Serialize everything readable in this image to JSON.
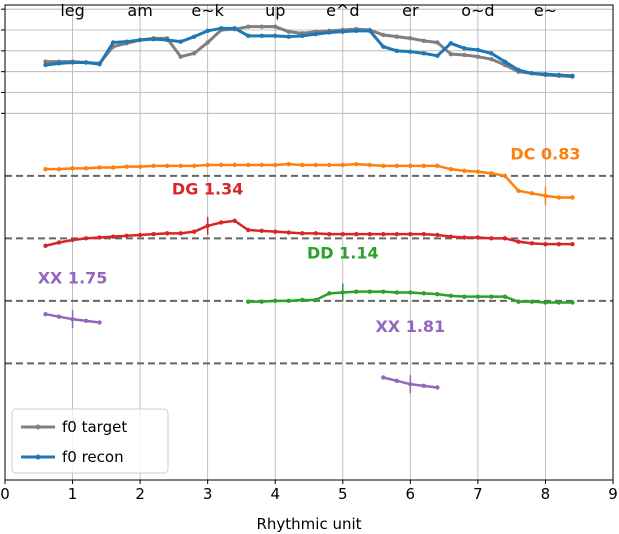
{
  "chart_data": {
    "type": "line",
    "title": "",
    "xlabel": "Rhythmic unit",
    "ylabel": "",
    "xlim": [
      0,
      9
    ],
    "ylim": [
      -4.4,
      1.3
    ],
    "x_ticks": [
      "0",
      "1",
      "2",
      "3",
      "4",
      "5",
      "6",
      "7",
      "8",
      "9"
    ],
    "top_labels": [
      {
        "x": 1.0,
        "text": "leg"
      },
      {
        "x": 2.0,
        "text": "am"
      },
      {
        "x": 3.0,
        "text": "e~k"
      },
      {
        "x": 4.0,
        "text": "up"
      },
      {
        "x": 5.0,
        "text": "e^d"
      },
      {
        "x": 6.0,
        "text": "er"
      },
      {
        "x": 7.0,
        "text": "o~d"
      },
      {
        "x": 8.0,
        "text": "e~"
      }
    ],
    "y_ticks": [
      1.25,
      1.0,
      0.75,
      0.5,
      0.25,
      0.0
    ],
    "baselines": [
      -0.75,
      -1.5,
      -2.25,
      -3.0
    ],
    "series": [
      {
        "name": "f0 target",
        "color": "#7f7f7f",
        "x": [
          0.6,
          0.8,
          1.0,
          1.2,
          1.4,
          1.6,
          1.8,
          2.0,
          2.2,
          2.4,
          2.6,
          2.8,
          3.0,
          3.2,
          3.4,
          3.6,
          3.8,
          4.0,
          4.2,
          4.4,
          4.6,
          4.8,
          5.0,
          5.2,
          5.4,
          5.6,
          5.8,
          6.0,
          6.2,
          6.4,
          6.6,
          6.8,
          7.0,
          7.2,
          7.4,
          7.6,
          7.8,
          8.0,
          8.2,
          8.4
        ],
        "y": [
          0.62,
          0.62,
          0.62,
          0.61,
          0.6,
          0.8,
          0.84,
          0.88,
          0.9,
          0.9,
          0.68,
          0.72,
          0.85,
          1.0,
          1.01,
          1.04,
          1.04,
          1.04,
          0.98,
          0.96,
          0.98,
          0.99,
          1.0,
          1.01,
          1.0,
          0.94,
          0.92,
          0.9,
          0.87,
          0.85,
          0.71,
          0.7,
          0.68,
          0.65,
          0.58,
          0.5,
          0.48,
          0.46,
          0.45,
          0.44
        ]
      },
      {
        "name": "f0 recon",
        "color": "#1f77b4",
        "x": [
          0.6,
          0.8,
          1.0,
          1.2,
          1.4,
          1.6,
          1.8,
          2.0,
          2.2,
          2.4,
          2.6,
          2.8,
          3.0,
          3.2,
          3.4,
          3.6,
          3.8,
          4.0,
          4.2,
          4.4,
          4.6,
          4.8,
          5.0,
          5.2,
          5.4,
          5.6,
          5.8,
          6.0,
          6.2,
          6.4,
          6.6,
          6.8,
          7.0,
          7.2,
          7.4,
          7.6,
          7.8,
          8.0,
          8.2,
          8.4
        ],
        "y": [
          0.58,
          0.6,
          0.61,
          0.61,
          0.59,
          0.85,
          0.86,
          0.88,
          0.89,
          0.88,
          0.86,
          0.92,
          0.99,
          1.02,
          1.02,
          0.93,
          0.93,
          0.93,
          0.92,
          0.93,
          0.95,
          0.97,
          0.98,
          0.99,
          0.99,
          0.8,
          0.75,
          0.74,
          0.72,
          0.69,
          0.84,
          0.78,
          0.76,
          0.72,
          0.62,
          0.52,
          0.48,
          0.47,
          0.46,
          0.45
        ]
      },
      {
        "name": "DC",
        "color": "#ff7f0e",
        "offset": -0.75,
        "label": "DC 0.83",
        "label_x": 8.0,
        "label_y": -0.48,
        "marker_x": 8.0,
        "x": [
          0.6,
          0.8,
          1.0,
          1.2,
          1.4,
          1.6,
          1.8,
          2.0,
          2.2,
          2.4,
          2.6,
          2.8,
          3.0,
          3.2,
          3.4,
          3.6,
          3.8,
          4.0,
          4.2,
          4.4,
          4.6,
          4.8,
          5.0,
          5.2,
          5.4,
          5.6,
          5.8,
          6.0,
          6.2,
          6.4,
          6.6,
          6.8,
          7.0,
          7.2,
          7.4,
          7.6,
          7.8,
          8.0,
          8.2,
          8.4
        ],
        "y": [
          -0.67,
          -0.67,
          -0.66,
          -0.66,
          -0.65,
          -0.65,
          -0.64,
          -0.64,
          -0.63,
          -0.63,
          -0.63,
          -0.63,
          -0.62,
          -0.62,
          -0.62,
          -0.62,
          -0.62,
          -0.62,
          -0.61,
          -0.62,
          -0.62,
          -0.62,
          -0.62,
          -0.61,
          -0.62,
          -0.63,
          -0.63,
          -0.63,
          -0.63,
          -0.63,
          -0.67,
          -0.69,
          -0.7,
          -0.72,
          -0.75,
          -0.93,
          -0.96,
          -0.99,
          -1.01,
          -1.01
        ]
      },
      {
        "name": "DG",
        "color": "#d62728",
        "offset": -1.5,
        "label": "DG 1.34",
        "label_x": 3.0,
        "label_y": -0.9,
        "marker_x": 3.0,
        "x": [
          0.6,
          0.8,
          1.0,
          1.2,
          1.4,
          1.6,
          1.8,
          2.0,
          2.2,
          2.4,
          2.6,
          2.8,
          3.0,
          3.2,
          3.4,
          3.6,
          3.8,
          4.0,
          4.2,
          4.4,
          4.6,
          4.8,
          5.0,
          5.2,
          5.4,
          5.6,
          5.8,
          6.0,
          6.2,
          6.4,
          6.6,
          6.8,
          7.0,
          7.2,
          7.4,
          7.6,
          7.8,
          8.0,
          8.2,
          8.4
        ],
        "y": [
          -1.59,
          -1.55,
          -1.52,
          -1.5,
          -1.49,
          -1.48,
          -1.47,
          -1.46,
          -1.45,
          -1.44,
          -1.44,
          -1.42,
          -1.35,
          -1.31,
          -1.29,
          -1.4,
          -1.41,
          -1.42,
          -1.43,
          -1.44,
          -1.44,
          -1.45,
          -1.45,
          -1.45,
          -1.45,
          -1.45,
          -1.45,
          -1.45,
          -1.45,
          -1.46,
          -1.48,
          -1.49,
          -1.49,
          -1.5,
          -1.5,
          -1.54,
          -1.56,
          -1.57,
          -1.57,
          -1.57
        ]
      },
      {
        "name": "DD",
        "color": "#2ca02c",
        "offset": -2.25,
        "label": "DD 1.14",
        "label_x": 5.0,
        "label_y": -1.67,
        "marker_x": 5.0,
        "x": [
          3.6,
          3.8,
          4.0,
          4.2,
          4.4,
          4.6,
          4.8,
          5.0,
          5.2,
          5.4,
          5.6,
          5.8,
          6.0,
          6.2,
          6.4,
          6.6,
          6.8,
          7.0,
          7.2,
          7.4,
          7.6,
          7.8,
          8.0,
          8.2,
          8.4
        ],
        "y": [
          -2.26,
          -2.26,
          -2.25,
          -2.25,
          -2.24,
          -2.24,
          -2.16,
          -2.15,
          -2.14,
          -2.14,
          -2.14,
          -2.15,
          -2.15,
          -2.16,
          -2.17,
          -2.19,
          -2.2,
          -2.2,
          -2.2,
          -2.2,
          -2.26,
          -2.26,
          -2.27,
          -2.27,
          -2.27
        ]
      },
      {
        "name": "XX",
        "color": "#9467bd",
        "offset": -3.0,
        "label": "XX 1.75",
        "label_x": 1.0,
        "label_y": -1.97,
        "marker_x": 1.0,
        "x": [
          0.6,
          0.8,
          1.0,
          1.2,
          1.4
        ],
        "y": [
          -2.41,
          -2.44,
          -2.47,
          -2.49,
          -2.51
        ]
      },
      {
        "name": "XX",
        "color": "#9467bd",
        "offset": -3.0,
        "label": "XX 1.81",
        "label_x": 6.0,
        "label_y": -2.55,
        "marker_x": 6.0,
        "x": [
          5.6,
          5.8,
          6.0,
          6.2,
          6.4
        ],
        "y": [
          -3.17,
          -3.21,
          -3.25,
          -3.27,
          -3.29
        ]
      }
    ],
    "legend": {
      "placement": "lower-left",
      "entries": [
        {
          "label": "f0 target",
          "color": "#7f7f7f"
        },
        {
          "label": "f0 recon",
          "color": "#1f77b4"
        }
      ]
    },
    "grid": true
  }
}
